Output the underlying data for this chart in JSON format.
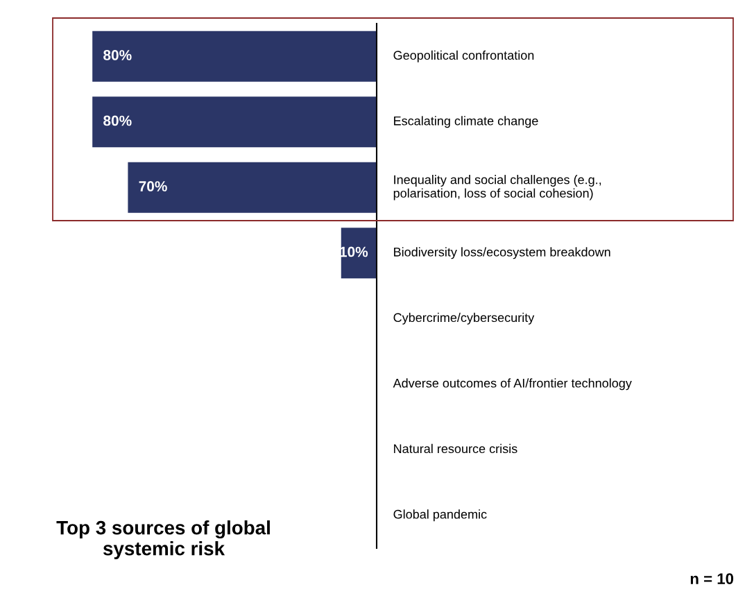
{
  "chart_data": {
    "type": "bar",
    "orientation": "horizontal",
    "title": "Top 3 sources of global systemic risk",
    "categories": [
      "Geopolitical confrontation",
      "Escalating climate change",
      "Inequality and social challenges (e.g.,\npolarisation, loss of social cohesion)",
      "Biodiversity loss/ecosystem breakdown",
      "Cybercrime/cybersecurity",
      "Adverse outcomes of AI/frontier technology",
      "Natural resource crisis",
      "Global pandemic"
    ],
    "values": [
      80,
      80,
      70,
      10,
      0,
      0,
      0,
      0
    ],
    "value_labels": [
      "80%",
      "80%",
      "70%",
      "10%",
      null,
      null,
      null,
      null
    ],
    "color": "#2b3667",
    "annotations": [
      "n = 10"
    ]
  }
}
